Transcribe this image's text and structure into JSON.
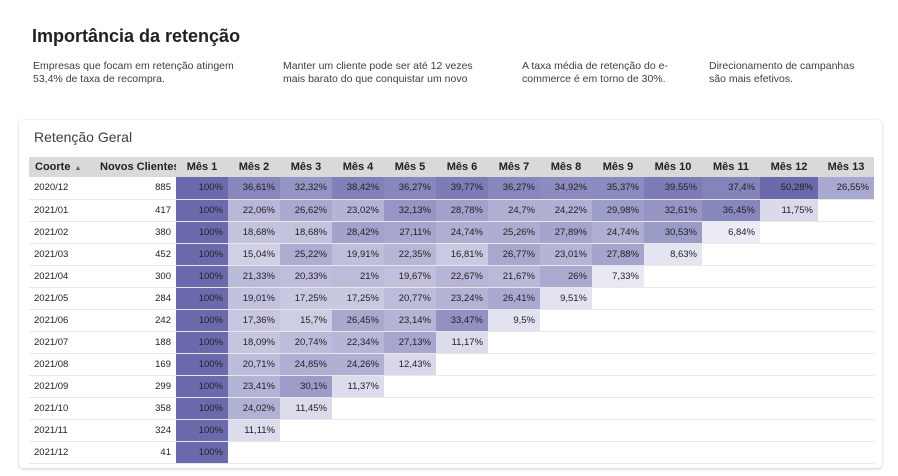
{
  "page": {
    "title": "Importância da retenção",
    "facts": [
      "Empresas que focam em retenção atingem 53,4% de taxa de recompra.",
      "Manter um cliente pode ser até 12 vezes mais barato do que conquistar um novo",
      "A taxa média de retenção do e-commerce é em torno de 30%.",
      "Direcionamento de campanhas são mais efetivos."
    ]
  },
  "card": {
    "title": "Retenção Geral"
  },
  "colors": {
    "header_bg": "#d9d9d9",
    "heat_light": "#f4f4fa",
    "heat_dark": "#6b6aad"
  },
  "table": {
    "headers": [
      "Coorte",
      "Novos Clientes",
      "Mês 1",
      "Mês 2",
      "Mês 3",
      "Mês 4",
      "Mês 5",
      "Mês 6",
      "Mês 7",
      "Mês 8",
      "Mês 9",
      "Mês 10",
      "Mês 11",
      "Mês 12",
      "Mês 13"
    ],
    "sort_icon": "sort-ascending-icon",
    "rows": [
      {
        "coorte": "2020/12",
        "novos": "885",
        "values": [
          "100%",
          "36,61%",
          "32,32%",
          "38,42%",
          "36,27%",
          "39,77%",
          "36,27%",
          "34,92%",
          "35,37%",
          "39,55%",
          "37,4%",
          "50,28%",
          "26,55%"
        ],
        "levels": [
          100,
          36.61,
          32.32,
          38.42,
          36.27,
          39.77,
          36.27,
          34.92,
          35.37,
          39.55,
          37.4,
          50.28,
          26.55
        ]
      },
      {
        "coorte": "2021/01",
        "novos": "417",
        "values": [
          "100%",
          "22,06%",
          "26,62%",
          "23,02%",
          "32,13%",
          "28,78%",
          "24,7%",
          "24,22%",
          "29,98%",
          "32,61%",
          "36,45%",
          "11,75%"
        ],
        "levels": [
          100,
          22.06,
          26.62,
          23.02,
          32.13,
          28.78,
          24.7,
          24.22,
          29.98,
          32.61,
          36.45,
          11.75
        ]
      },
      {
        "coorte": "2021/02",
        "novos": "380",
        "values": [
          "100%",
          "18,68%",
          "18,68%",
          "28,42%",
          "27,11%",
          "24,74%",
          "25,26%",
          "27,89%",
          "24,74%",
          "30,53%",
          "6,84%"
        ],
        "levels": [
          100,
          18.68,
          18.68,
          28.42,
          27.11,
          24.74,
          25.26,
          27.89,
          24.74,
          30.53,
          6.84
        ]
      },
      {
        "coorte": "2021/03",
        "novos": "452",
        "values": [
          "100%",
          "15,04%",
          "25,22%",
          "19,91%",
          "22,35%",
          "16,81%",
          "26,77%",
          "23,01%",
          "27,88%",
          "8,63%"
        ],
        "levels": [
          100,
          15.04,
          25.22,
          19.91,
          22.35,
          16.81,
          26.77,
          23.01,
          27.88,
          8.63
        ]
      },
      {
        "coorte": "2021/04",
        "novos": "300",
        "values": [
          "100%",
          "21,33%",
          "20,33%",
          "21%",
          "19,67%",
          "22,67%",
          "21,67%",
          "26%",
          "7,33%"
        ],
        "levels": [
          100,
          21.33,
          20.33,
          21,
          19.67,
          22.67,
          21.67,
          26,
          7.33
        ]
      },
      {
        "coorte": "2021/05",
        "novos": "284",
        "values": [
          "100%",
          "19,01%",
          "17,25%",
          "17,25%",
          "20,77%",
          "23,24%",
          "26,41%",
          "9,51%"
        ],
        "levels": [
          100,
          19.01,
          17.25,
          17.25,
          20.77,
          23.24,
          26.41,
          9.51
        ]
      },
      {
        "coorte": "2021/06",
        "novos": "242",
        "values": [
          "100%",
          "17,36%",
          "15,7%",
          "26,45%",
          "23,14%",
          "33,47%",
          "9,5%"
        ],
        "levels": [
          100,
          17.36,
          15.7,
          26.45,
          23.14,
          33.47,
          9.5
        ]
      },
      {
        "coorte": "2021/07",
        "novos": "188",
        "values": [
          "100%",
          "18,09%",
          "20,74%",
          "22,34%",
          "27,13%",
          "11,17%"
        ],
        "levels": [
          100,
          18.09,
          20.74,
          22.34,
          27.13,
          11.17
        ]
      },
      {
        "coorte": "2021/08",
        "novos": "169",
        "values": [
          "100%",
          "20,71%",
          "24,85%",
          "24,26%",
          "12,43%"
        ],
        "levels": [
          100,
          20.71,
          24.85,
          24.26,
          12.43
        ]
      },
      {
        "coorte": "2021/09",
        "novos": "299",
        "values": [
          "100%",
          "23,41%",
          "30,1%",
          "11,37%"
        ],
        "levels": [
          100,
          23.41,
          30.1,
          11.37
        ]
      },
      {
        "coorte": "2021/10",
        "novos": "358",
        "values": [
          "100%",
          "24,02%",
          "11,45%"
        ],
        "levels": [
          100,
          24.02,
          11.45
        ]
      },
      {
        "coorte": "2021/11",
        "novos": "324",
        "values": [
          "100%",
          "11,11%"
        ],
        "levels": [
          100,
          11.11
        ]
      },
      {
        "coorte": "2021/12",
        "novos": "41",
        "values": [
          "100%"
        ],
        "levels": [
          100
        ]
      }
    ]
  }
}
